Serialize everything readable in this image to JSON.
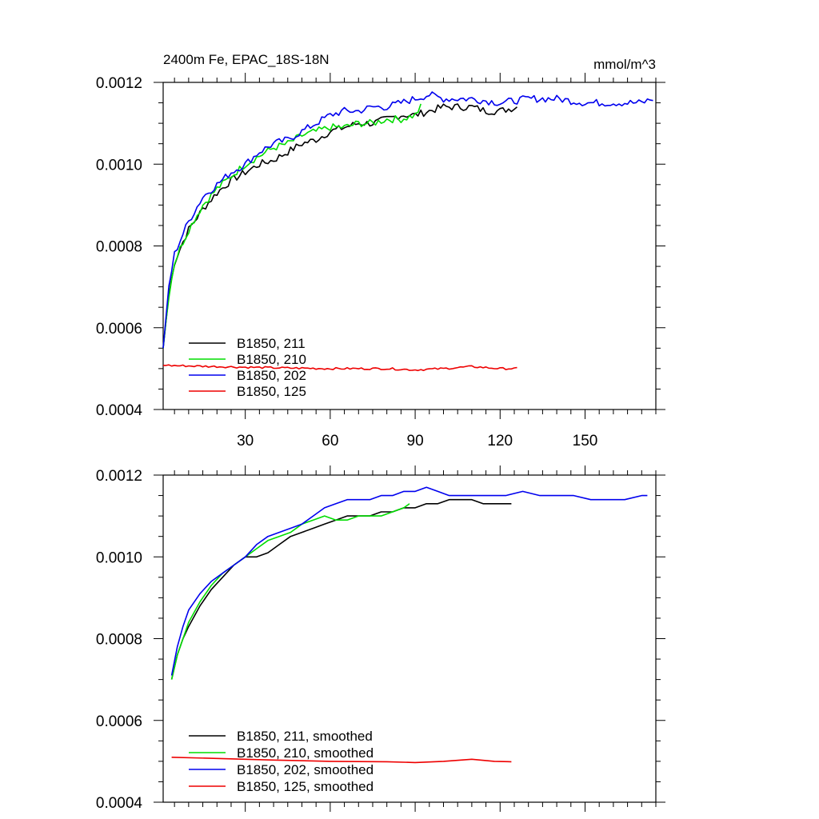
{
  "colors": {
    "B1850_211": "#000000",
    "B1850_210": "#00dd00",
    "B1850_202": "#0000ee",
    "B1850_125": "#ee0000"
  },
  "chart_data": [
    {
      "type": "line",
      "title": "2400m Fe, EPAC_18S-18N",
      "units": "mmol/m^3",
      "xlabel": "",
      "ylabel": "",
      "xlim": [
        1,
        175
      ],
      "ylim": [
        0.0004,
        0.0012
      ],
      "xticks": [
        30,
        60,
        90,
        120,
        150
      ],
      "xtick_labels": [
        "30",
        "60",
        "90",
        "120",
        "150"
      ],
      "yticks": [
        0.0004,
        0.0006,
        0.0008,
        0.001,
        0.0012
      ],
      "ytick_labels": [
        "0.0004",
        "0.0006",
        "0.0008",
        "0.0010",
        "0.0012"
      ],
      "grid": false,
      "legend_position": "bottom-left",
      "series": [
        {
          "name": "B1850, 211",
          "color_key": "B1850_211",
          "noisy": true,
          "x": [
            1,
            3,
            5,
            8,
            10,
            15,
            20,
            25,
            30,
            35,
            40,
            45,
            50,
            55,
            60,
            65,
            70,
            75,
            80,
            85,
            90,
            95,
            100,
            105,
            110,
            115,
            120,
            126
          ],
          "y": [
            0.00055,
            0.00068,
            0.00076,
            0.00081,
            0.00084,
            0.00089,
            0.00093,
            0.00096,
            0.00098,
            0.001,
            0.00101,
            0.00103,
            0.00105,
            0.00106,
            0.00108,
            0.00109,
            0.0011,
            0.0011,
            0.00111,
            0.00112,
            0.00112,
            0.00113,
            0.00114,
            0.00114,
            0.00114,
            0.00113,
            0.00113,
            0.00114
          ]
        },
        {
          "name": "B1850, 210",
          "color_key": "B1850_210",
          "noisy": true,
          "x": [
            1,
            3,
            5,
            8,
            10,
            15,
            20,
            25,
            30,
            35,
            40,
            45,
            50,
            55,
            60,
            65,
            70,
            75,
            80,
            85,
            90,
            92
          ],
          "y": [
            0.00055,
            0.00068,
            0.00076,
            0.00081,
            0.00084,
            0.0009,
            0.00094,
            0.00097,
            0.001,
            0.00102,
            0.00104,
            0.00105,
            0.00107,
            0.00108,
            0.00109,
            0.00109,
            0.0011,
            0.0011,
            0.00111,
            0.00111,
            0.00112,
            0.00114
          ]
        },
        {
          "name": "B1850, 202",
          "color_key": "B1850_202",
          "noisy": true,
          "x": [
            1,
            3,
            5,
            8,
            10,
            15,
            20,
            25,
            30,
            35,
            40,
            45,
            50,
            55,
            60,
            65,
            70,
            75,
            80,
            85,
            90,
            95,
            100,
            110,
            120,
            130,
            140,
            150,
            160,
            170,
            174
          ],
          "y": [
            0.00055,
            0.0007,
            0.00078,
            0.00083,
            0.00086,
            0.00092,
            0.00095,
            0.00098,
            0.001,
            0.00103,
            0.00105,
            0.00106,
            0.00108,
            0.0011,
            0.00112,
            0.00113,
            0.00113,
            0.00114,
            0.00114,
            0.00115,
            0.00116,
            0.00117,
            0.00116,
            0.00116,
            0.00115,
            0.00116,
            0.00116,
            0.00115,
            0.00115,
            0.00115,
            0.00116
          ]
        },
        {
          "name": "B1850, 125",
          "color_key": "B1850_125",
          "noisy": true,
          "x": [
            1,
            20,
            40,
            60,
            80,
            90,
            100,
            110,
            120,
            126
          ],
          "y": [
            0.000508,
            0.000505,
            0.000502,
            0.0005,
            0.0005,
            0.000497,
            0.0005,
            0.000505,
            0.0005,
            0.0005
          ]
        }
      ]
    },
    {
      "type": "line",
      "title": "",
      "units": "",
      "xlabel": "",
      "ylabel": "",
      "xlim": [
        1,
        175
      ],
      "ylim": [
        0.0004,
        0.0012
      ],
      "xticks": [
        30,
        60,
        90,
        120,
        150
      ],
      "xtick_labels": [],
      "yticks": [
        0.0004,
        0.0006,
        0.0008,
        0.001,
        0.0012
      ],
      "ytick_labels": [
        "0.0004",
        "0.0006",
        "0.0008",
        "0.0010",
        "0.0012"
      ],
      "grid": false,
      "legend_position": "bottom-left",
      "series": [
        {
          "name": "B1850, 211, smoothed",
          "color_key": "B1850_211",
          "noisy": false,
          "x": [
            4,
            6,
            8,
            10,
            14,
            18,
            22,
            26,
            30,
            34,
            38,
            42,
            46,
            50,
            54,
            58,
            62,
            66,
            70,
            74,
            78,
            82,
            86,
            90,
            94,
            98,
            102,
            106,
            110,
            114,
            118,
            122,
            124
          ],
          "y": [
            0.0007,
            0.00076,
            0.0008,
            0.00083,
            0.00088,
            0.00092,
            0.00095,
            0.00098,
            0.001,
            0.001,
            0.00101,
            0.00103,
            0.00105,
            0.00106,
            0.00107,
            0.00108,
            0.00109,
            0.0011,
            0.0011,
            0.0011,
            0.00111,
            0.00111,
            0.00112,
            0.00112,
            0.00113,
            0.00113,
            0.00114,
            0.00114,
            0.00114,
            0.00113,
            0.00113,
            0.00113,
            0.00113
          ]
        },
        {
          "name": "B1850, 210, smoothed",
          "color_key": "B1850_210",
          "noisy": false,
          "x": [
            4,
            6,
            8,
            10,
            14,
            18,
            22,
            26,
            30,
            34,
            38,
            42,
            46,
            50,
            54,
            58,
            62,
            66,
            70,
            74,
            78,
            82,
            86,
            88
          ],
          "y": [
            0.0007,
            0.00076,
            0.0008,
            0.00084,
            0.00089,
            0.00093,
            0.00096,
            0.00098,
            0.001,
            0.00102,
            0.00104,
            0.00105,
            0.00106,
            0.00108,
            0.00109,
            0.0011,
            0.00109,
            0.00109,
            0.0011,
            0.0011,
            0.0011,
            0.00111,
            0.00112,
            0.00113
          ]
        },
        {
          "name": "B1850, 202, smoothed",
          "color_key": "B1850_202",
          "noisy": false,
          "x": [
            4,
            6,
            8,
            10,
            14,
            18,
            22,
            26,
            30,
            34,
            38,
            42,
            46,
            50,
            54,
            58,
            62,
            66,
            70,
            74,
            78,
            82,
            86,
            90,
            94,
            98,
            102,
            106,
            110,
            116,
            122,
            128,
            134,
            140,
            146,
            152,
            158,
            164,
            170,
            172
          ],
          "y": [
            0.00071,
            0.00078,
            0.00083,
            0.00087,
            0.00091,
            0.00094,
            0.00096,
            0.00098,
            0.001,
            0.00103,
            0.00105,
            0.00106,
            0.00107,
            0.00108,
            0.0011,
            0.00112,
            0.00113,
            0.00114,
            0.00114,
            0.00114,
            0.00115,
            0.00115,
            0.00116,
            0.00116,
            0.00117,
            0.00116,
            0.00115,
            0.00115,
            0.00115,
            0.00115,
            0.00115,
            0.00116,
            0.00115,
            0.00115,
            0.00115,
            0.00114,
            0.00114,
            0.00114,
            0.00115,
            0.00115
          ]
        },
        {
          "name": "B1850, 125, smoothed",
          "color_key": "B1850_125",
          "noisy": false,
          "x": [
            4,
            20,
            40,
            60,
            80,
            90,
            100,
            110,
            118,
            124
          ],
          "y": [
            0.00051,
            0.000507,
            0.000503,
            0.0005,
            0.000499,
            0.000497,
            0.0005,
            0.000505,
            0.0005,
            0.000499
          ]
        }
      ]
    }
  ]
}
